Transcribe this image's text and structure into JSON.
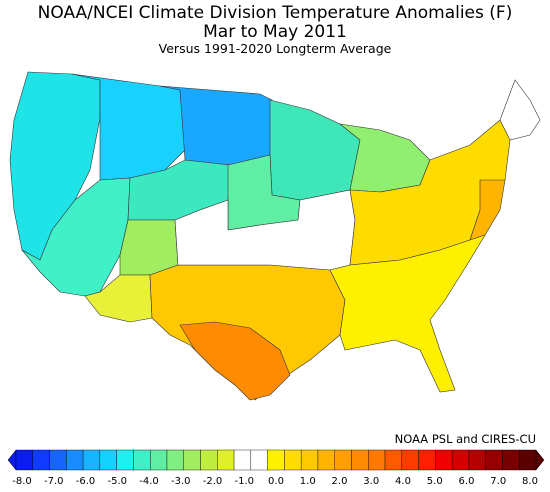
{
  "header": {
    "title_line1": "NOAA/NCEI Climate Division Temperature Anomalies (F)",
    "title_line2": "Mar to May 2011",
    "subtitle": "Versus 1991-2020 Longterm Average"
  },
  "credit": "NOAA PSL and CIRES-CU",
  "legend": {
    "tick_labels": [
      "-8.0",
      "-7.0",
      "-6.0",
      "-5.0",
      "-4.0",
      "-3.0",
      "-2.0",
      "-1.0",
      "0.0",
      "1.0",
      "2.0",
      "3.0",
      "4.0",
      "5.0",
      "6.0",
      "7.0",
      "8.0"
    ],
    "colors": [
      "#0a1cf0",
      "#0f3cff",
      "#1764ff",
      "#1a8cff",
      "#19b4ff",
      "#14d2ff",
      "#1ef0f0",
      "#40f0c8",
      "#60eea4",
      "#80ee80",
      "#a0ee60",
      "#c0ee40",
      "#e0f028",
      "#ffffff",
      "#ffffff",
      "#fff000",
      "#ffdc00",
      "#ffc800",
      "#ffb400",
      "#ffa000",
      "#ff8c00",
      "#ff7800",
      "#ff5a00",
      "#ff3c00",
      "#ff1e00",
      "#f00000",
      "#d20000",
      "#b40000",
      "#960000",
      "#780000",
      "#5a0000"
    ]
  },
  "regions": [
    {
      "name": "pacific-northwest",
      "color": "#1ee4e8"
    },
    {
      "name": "northern-rockies",
      "color": "#19d0ff"
    },
    {
      "name": "northern-plains",
      "color": "#1aa8ff"
    },
    {
      "name": "upper-midwest",
      "color": "#3fe6b8"
    },
    {
      "name": "california-great-basin",
      "color": "#40f0c8"
    },
    {
      "name": "central-rockies",
      "color": "#3ce8c0"
    },
    {
      "name": "central-plains",
      "color": "#60eea4"
    },
    {
      "name": "great-lakes",
      "color": "#90ee70"
    },
    {
      "name": "desert-southwest",
      "color": "#e8f038"
    },
    {
      "name": "four-corners",
      "color": "#a0ee60"
    },
    {
      "name": "southern-plains",
      "color": "#ffc800"
    },
    {
      "name": "texas-core",
      "color": "#ff8c00"
    },
    {
      "name": "midwest-neutral",
      "color": "#ffffff"
    },
    {
      "name": "east",
      "color": "#ffdc00"
    },
    {
      "name": "southeast",
      "color": "#fff000"
    },
    {
      "name": "new-england",
      "color": "#ffffff"
    },
    {
      "name": "mid-atlantic-coast",
      "color": "#ffb400"
    }
  ]
}
